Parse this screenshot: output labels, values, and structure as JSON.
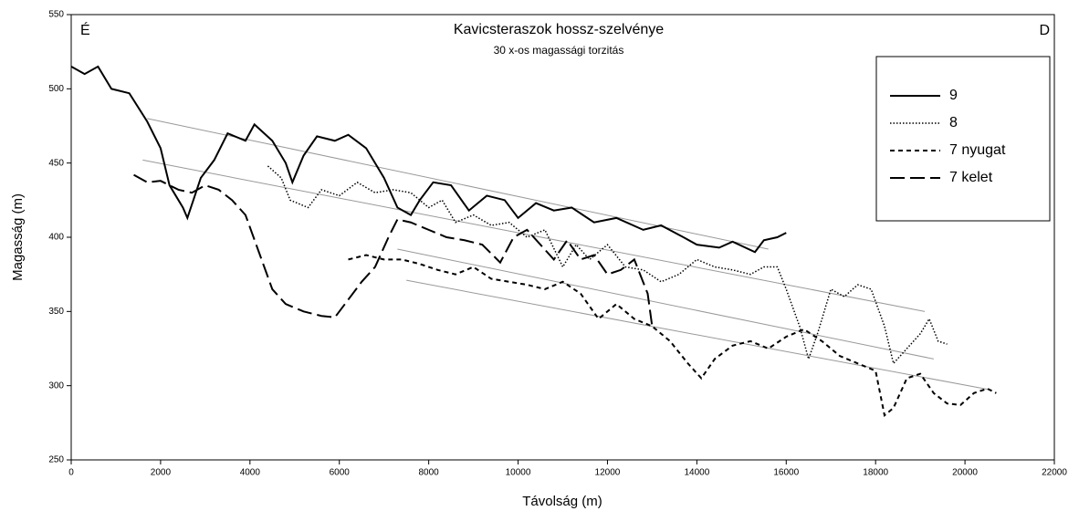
{
  "chart_data": {
    "type": "line",
    "title": "Kavicsteraszok hossz-szelvénye",
    "subtitle": "30 x-os magassági torzitás",
    "annotations": [
      "É",
      "D"
    ],
    "x_label": "Távolság (m)",
    "y_label": "Magasság (m)",
    "xlim": [
      0,
      22000
    ],
    "ylim": [
      250,
      550
    ],
    "xticks": [
      0,
      2000,
      4000,
      6000,
      8000,
      10000,
      12000,
      14000,
      16000,
      18000,
      20000,
      22000
    ],
    "yticks": [
      250,
      300,
      350,
      400,
      450,
      500,
      550
    ],
    "legend": "upper right",
    "series": [
      {
        "name": "9",
        "color": "#000000",
        "style": "solid",
        "x": [
          0,
          300,
          600,
          900,
          1300,
          1700,
          2000,
          2200,
          2500,
          2600,
          2900,
          3200,
          3500,
          3900,
          4100,
          4500,
          4800,
          4950,
          5200,
          5500,
          5900,
          6200,
          6600,
          7000,
          7300,
          7600,
          7800,
          8100,
          8500,
          8900,
          9300,
          9700,
          10000,
          10400,
          10800,
          11200,
          11700,
          12200,
          12800,
          13200,
          13700,
          14000,
          14500,
          14800,
          15300,
          15500,
          15800,
          16000
        ],
        "values": [
          515,
          510,
          515,
          500,
          497,
          478,
          460,
          435,
          420,
          413,
          440,
          452,
          470,
          465,
          476,
          465,
          450,
          437,
          455,
          468,
          465,
          469,
          460,
          440,
          420,
          415,
          425,
          437,
          435,
          418,
          428,
          425,
          413,
          423,
          418,
          420,
          410,
          413,
          405,
          408,
          400,
          395,
          393,
          397,
          390,
          398,
          400,
          403
        ]
      },
      {
        "name": "8",
        "color": "#000000",
        "style": "dotted",
        "x": [
          4400,
          4700,
          4900,
          5300,
          5600,
          6000,
          6400,
          6800,
          7200,
          7600,
          8000,
          8300,
          8600,
          9000,
          9400,
          9800,
          10200,
          10600,
          11000,
          11300,
          11600,
          12000,
          12400,
          12800,
          13200,
          13600,
          14000,
          14400,
          14800,
          15200,
          15500,
          15800,
          16000,
          16300,
          16500,
          16700,
          17000,
          17300,
          17600,
          17900,
          18200,
          18400,
          18700,
          19000,
          19200,
          19400,
          19600
        ],
        "values": [
          448,
          440,
          425,
          420,
          432,
          428,
          437,
          430,
          432,
          430,
          420,
          425,
          410,
          415,
          408,
          410,
          400,
          405,
          380,
          395,
          385,
          395,
          380,
          378,
          370,
          375,
          385,
          380,
          378,
          375,
          380,
          380,
          365,
          340,
          318,
          335,
          365,
          360,
          368,
          365,
          340,
          315,
          325,
          335,
          345,
          330,
          328
        ]
      },
      {
        "name": "7 nyugat",
        "color": "#000000",
        "style": "dashed",
        "x": [
          6200,
          6600,
          7000,
          7400,
          7800,
          8200,
          8600,
          9000,
          9400,
          9800,
          10200,
          10600,
          11000,
          11400,
          11800,
          12200,
          12600,
          13000,
          13400,
          13800,
          14100,
          14400,
          14800,
          15200,
          15600,
          16000,
          16400,
          16800,
          17200,
          17600,
          18000,
          18200,
          18400,
          18700,
          19000,
          19300,
          19600,
          19900,
          20200,
          20500,
          20700
        ],
        "values": [
          385,
          388,
          385,
          385,
          382,
          378,
          375,
          380,
          372,
          370,
          368,
          365,
          370,
          362,
          345,
          355,
          345,
          340,
          330,
          315,
          305,
          318,
          327,
          330,
          325,
          333,
          338,
          330,
          320,
          315,
          310,
          280,
          285,
          305,
          308,
          295,
          288,
          287,
          295,
          298,
          295
        ]
      },
      {
        "name": "7 kelet",
        "color": "#000000",
        "style": "longdash",
        "x": [
          1400,
          1700,
          2000,
          2400,
          2700,
          3000,
          3300,
          3600,
          3900,
          4200,
          4500,
          4800,
          5200,
          5600,
          5900,
          6200,
          6500,
          6800,
          7100,
          7300,
          7600,
          8000,
          8400,
          8800,
          9200,
          9600,
          9900,
          10200,
          10500,
          10800,
          11100,
          11400,
          11700,
          12000,
          12300,
          12600,
          12900,
          13000
        ],
        "values": [
          442,
          437,
          438,
          432,
          430,
          435,
          432,
          425,
          415,
          390,
          365,
          355,
          350,
          347,
          346,
          358,
          370,
          380,
          400,
          412,
          410,
          405,
          400,
          398,
          395,
          383,
          400,
          405,
          395,
          385,
          398,
          385,
          388,
          375,
          378,
          385,
          362,
          340
        ]
      }
    ],
    "reference_lines": [
      {
        "color": "#999999",
        "x": [
          1700,
          15600
        ],
        "values": [
          480,
          392
        ]
      },
      {
        "color": "#999999",
        "x": [
          1600,
          19100
        ],
        "values": [
          452,
          350
        ]
      },
      {
        "color": "#999999",
        "x": [
          7300,
          19300
        ],
        "values": [
          392,
          318
        ]
      },
      {
        "color": "#999999",
        "x": [
          7500,
          20600
        ],
        "values": [
          371,
          297
        ]
      }
    ]
  }
}
